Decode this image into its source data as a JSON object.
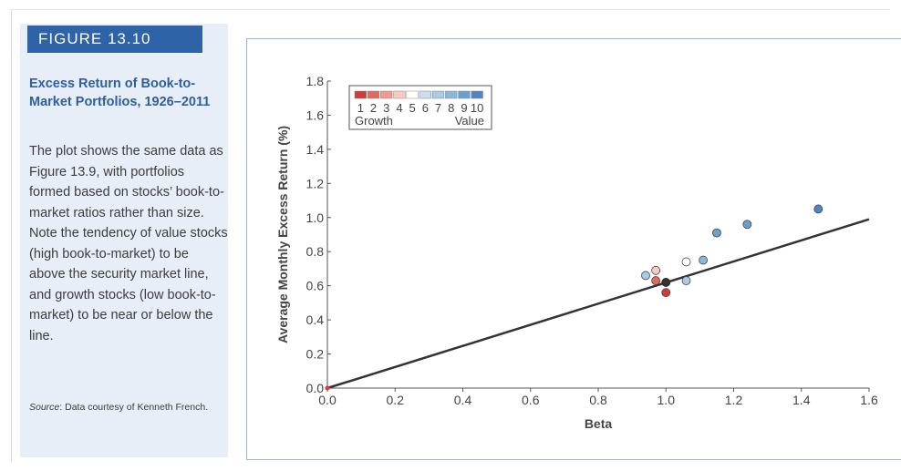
{
  "figure": {
    "label": "FIGURE 13.10",
    "title": "Excess Return of Book-to-Market Portfolios, 1926–2011",
    "body": "The plot shows the same data as Figure 13.9, with portfolios formed based on stocks’ book-to-market ratios rather than size. Note the tendency of value stocks (high book-to-market) to be above the security market line, and growth stocks (low book-to-market) to be near or below the line.",
    "source_label": "Source",
    "source_text": ": Data courtesy of Kenneth French."
  },
  "chart_data": {
    "type": "scatter",
    "xlabel": "Beta",
    "ylabel": "Average Monthly Excess Return (%)",
    "xlim": [
      0,
      1.6
    ],
    "ylim": [
      0,
      1.8
    ],
    "x_ticks": [
      "0.0",
      "0.2",
      "0.4",
      "0.6",
      "0.8",
      "1.0",
      "1.2",
      "1.4",
      "1.6"
    ],
    "y_ticks": [
      "0.0",
      "0.2",
      "0.4",
      "0.6",
      "0.8",
      "1.0",
      "1.2",
      "1.4",
      "1.6",
      "1.8"
    ],
    "grid": false,
    "legend": {
      "placement": "top-left",
      "labels": [
        "1",
        "2",
        "3",
        "4",
        "5",
        "6",
        "7",
        "8",
        "9",
        "10"
      ],
      "left_caption": "Growth",
      "right_caption": "Value",
      "colors": [
        "#d33a3a",
        "#e26a5c",
        "#ee9a8e",
        "#f5ccc2",
        "#ffffff",
        "#c9def0",
        "#a6cce6",
        "#8ab6dc",
        "#6a9fd0",
        "#4f86c0"
      ]
    },
    "market_point": {
      "x": 1.0,
      "y": 0.62,
      "color": "#333333"
    },
    "sml": {
      "x": [
        0.0,
        1.6
      ],
      "y": [
        0.0,
        0.99
      ],
      "color": "#333333"
    },
    "origin_point": {
      "x": 0.0,
      "y": 0.0,
      "color": "#d33a3a"
    },
    "points": [
      {
        "label": "1",
        "x": 1.0,
        "y": 0.56,
        "color": "#d33a3a"
      },
      {
        "label": "2",
        "x": 0.97,
        "y": 0.63,
        "color": "#e26a5c"
      },
      {
        "label": "3",
        "x": 0.97,
        "y": 0.69,
        "color": "#f5ccc2"
      },
      {
        "label": "4",
        "x": 0.94,
        "y": 0.66,
        "color": "#a6cce6"
      },
      {
        "label": "5",
        "x": 1.06,
        "y": 0.74,
        "color": "#ffffff"
      },
      {
        "label": "6",
        "x": 1.06,
        "y": 0.63,
        "color": "#a6cce6"
      },
      {
        "label": "7",
        "x": 1.11,
        "y": 0.75,
        "color": "#8ab6dc"
      },
      {
        "label": "8",
        "x": 1.15,
        "y": 0.91,
        "color": "#6a9fd0"
      },
      {
        "label": "9",
        "x": 1.24,
        "y": 0.96,
        "color": "#6a9fd0"
      },
      {
        "label": "10",
        "x": 1.45,
        "y": 1.05,
        "color": "#4f86c0"
      }
    ]
  }
}
